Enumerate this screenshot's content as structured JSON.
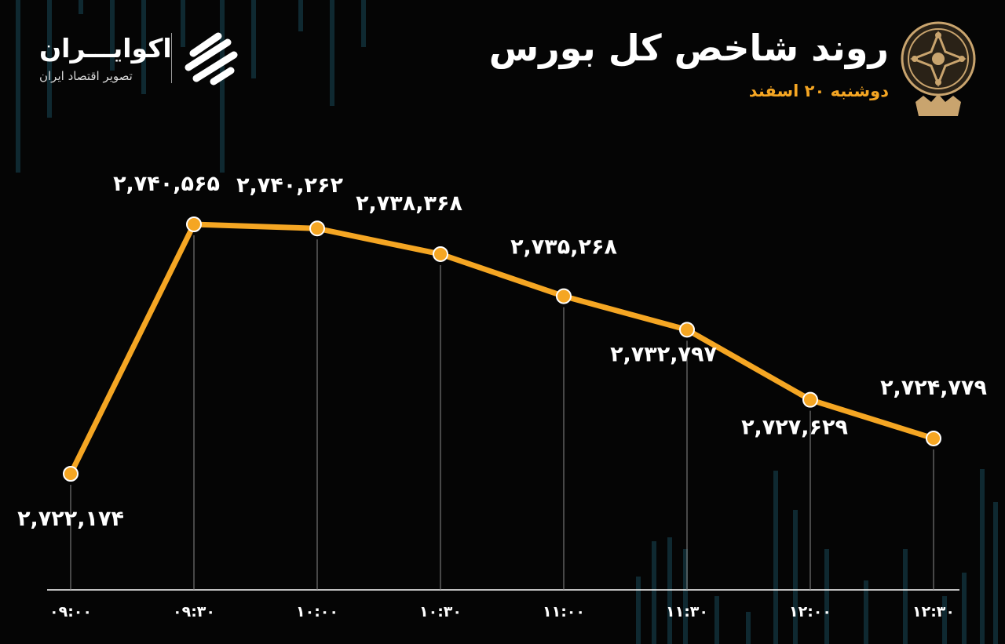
{
  "header": {
    "title": "روند شاخص کل بورس",
    "subtitle": "دوشنبه ۲۰ اسفند"
  },
  "brand": {
    "name": "اکوایـــران",
    "tagline": "تصویر اقتصاد ایران"
  },
  "colors": {
    "background": "#050505",
    "line": "#f5a623",
    "marker": "#f5a623",
    "text": "#ffffff",
    "accent": "#f5a623"
  },
  "chart_data": {
    "type": "line",
    "x": [
      "09:00",
      "09:30",
      "10:00",
      "10:30",
      "11:00",
      "11:30",
      "12:00",
      "12:30"
    ],
    "x_tick_labels": [
      "۰۹:۰۰",
      "۰۹:۳۰",
      "۱۰:۰۰",
      "۱۰:۳۰",
      "۱۱:۰۰",
      "۱۱:۳۰",
      "۱۲:۰۰",
      "۱۲:۳۰"
    ],
    "values": [
      2722174,
      2740565,
      2740262,
      2738368,
      2735268,
      2732797,
      2727629,
      2724779
    ],
    "data_labels": [
      "۲,۷۲۲,۱۷۴",
      "۲,۷۴۰,۵۶۵",
      "۲,۷۴۰,۲۶۲",
      "۲,۷۳۸,۳۶۸",
      "۲,۷۳۵,۲۶۸",
      "۲,۷۳۲,۷۹۷",
      "۲,۷۲۷,۶۲۹",
      "۲,۷۲۴,۷۷۹"
    ],
    "title": "روند شاخص کل بورس",
    "xlabel": "",
    "ylabel": "",
    "grid": false,
    "legend": "none"
  }
}
